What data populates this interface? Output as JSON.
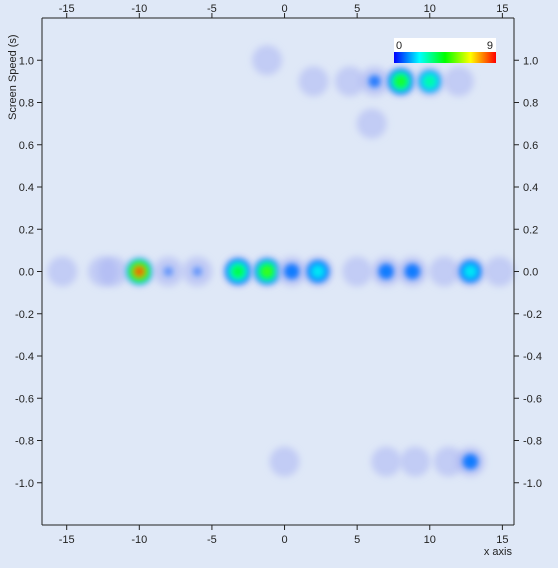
{
  "chart_data": {
    "type": "heatmap",
    "title": "",
    "xlabel": "x axis",
    "ylabel": "Screen Speed (s)",
    "xlim": [
      -16.7,
      15.8
    ],
    "ylim": [
      -1.2,
      1.2
    ],
    "x_ticks": [
      -15,
      -10,
      -5,
      0,
      5,
      10,
      15
    ],
    "y_ticks": [
      1.0,
      0.8,
      0.6,
      0.4,
      0.2,
      0.0,
      -0.2,
      -0.4,
      -0.6,
      -0.8,
      -1.0
    ],
    "x_tick_labels": [
      "-15",
      "-10",
      "-5",
      "0",
      "5",
      "10",
      "15"
    ],
    "y_tick_labels": [
      "1.0",
      "0.8",
      "0.6",
      "0.4",
      "0.2",
      "0.0",
      "-0.2",
      "-0.4",
      "-0.6",
      "-0.8",
      "-1.0"
    ],
    "grid": false,
    "colorscale": {
      "min_label": "0",
      "max_label": "9",
      "min": 0,
      "max": 9,
      "stops": [
        "#0000ff",
        "#00ffff",
        "#00ff00",
        "#ffff00",
        "#ff0000"
      ],
      "placement": "top-right"
    },
    "points": [
      {
        "x": -15.3,
        "y": 0.0,
        "value": 0.7
      },
      {
        "x": -12.5,
        "y": 0.0,
        "value": 0.7
      },
      {
        "x": -11.8,
        "y": 0.0,
        "value": 0.7
      },
      {
        "x": -10.0,
        "y": 0.0,
        "value": 9
      },
      {
        "x": -8.0,
        "y": 0.0,
        "value": 0.8
      },
      {
        "x": -6.0,
        "y": 0.0,
        "value": 0.8
      },
      {
        "x": -3.2,
        "y": 0.0,
        "value": 4.5
      },
      {
        "x": -1.2,
        "y": 0.0,
        "value": 5.5
      },
      {
        "x": 0.5,
        "y": 0.0,
        "value": 1.2
      },
      {
        "x": 2.3,
        "y": 0.0,
        "value": 2.5
      },
      {
        "x": 5.0,
        "y": 0.0,
        "value": 0.7
      },
      {
        "x": 7.0,
        "y": 0.0,
        "value": 1.2
      },
      {
        "x": 8.8,
        "y": 0.0,
        "value": 1.2
      },
      {
        "x": 11.0,
        "y": 0.0,
        "value": 0.7
      },
      {
        "x": 12.8,
        "y": 0.0,
        "value": 2.5
      },
      {
        "x": 14.8,
        "y": 0.0,
        "value": 0.5
      },
      {
        "x": -1.2,
        "y": 1.0,
        "value": 0.5
      },
      {
        "x": 2.0,
        "y": 0.9,
        "value": 0.5
      },
      {
        "x": 4.5,
        "y": 0.9,
        "value": 0.5
      },
      {
        "x": 6.2,
        "y": 0.9,
        "value": 1.0
      },
      {
        "x": 8.0,
        "y": 0.9,
        "value": 5.0
      },
      {
        "x": 10.0,
        "y": 0.9,
        "value": 3.5
      },
      {
        "x": 12.0,
        "y": 0.9,
        "value": 0.5
      },
      {
        "x": 6.0,
        "y": 0.7,
        "value": 0.5
      },
      {
        "x": 0.0,
        "y": -0.9,
        "value": 0.5
      },
      {
        "x": 7.0,
        "y": -0.9,
        "value": 0.5
      },
      {
        "x": 9.0,
        "y": -0.9,
        "value": 0.5
      },
      {
        "x": 11.3,
        "y": -0.9,
        "value": 0.5
      },
      {
        "x": 12.8,
        "y": -0.9,
        "value": 1.2
      }
    ]
  }
}
